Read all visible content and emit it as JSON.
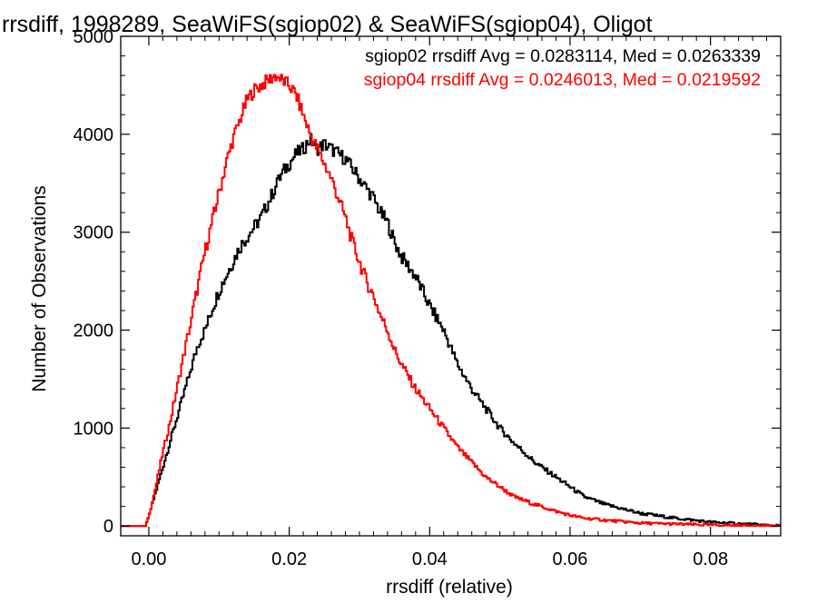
{
  "chart_data": {
    "type": "histogram",
    "title": "rrsdiff, 1998289, SeaWiFS(sgiop02) & SeaWiFS(sgiop04), Oligot",
    "xlabel": "rrsdiff (relative)",
    "ylabel": "Number of Observations",
    "xlim": [
      -0.004,
      0.09
    ],
    "ylim": [
      -100,
      5000
    ],
    "x_ticks": [
      0.0,
      0.02,
      0.04,
      0.06,
      0.08
    ],
    "x_tick_labels": [
      "0.00",
      "0.02",
      "0.04",
      "0.06",
      "0.08"
    ],
    "y_ticks": [
      0,
      1000,
      2000,
      3000,
      4000,
      5000
    ],
    "y_tick_labels": [
      "0",
      "1000",
      "2000",
      "3000",
      "4000",
      "5000"
    ],
    "bin_width": 0.0002,
    "legend": [
      {
        "text": "sgiop02 rrsdiff Avg = 0.0283114, Med = 0.0263339",
        "color": "#000000"
      },
      {
        "text": "sgiop04 rrsdiff Avg = 0.0246013, Med = 0.0219592",
        "color": "#ff0000"
      }
    ],
    "series": [
      {
        "color": "#000000",
        "x": [
          -0.004,
          -0.0005,
          0.0,
          0.001,
          0.002,
          0.003,
          0.004,
          0.005,
          0.006,
          0.007,
          0.008,
          0.009,
          0.01,
          0.011,
          0.012,
          0.013,
          0.014,
          0.015,
          0.016,
          0.017,
          0.018,
          0.019,
          0.02,
          0.021,
          0.022,
          0.023,
          0.024,
          0.025,
          0.026,
          0.027,
          0.028,
          0.029,
          0.03,
          0.031,
          0.032,
          0.033,
          0.034,
          0.035,
          0.036,
          0.037,
          0.038,
          0.039,
          0.04,
          0.042,
          0.044,
          0.046,
          0.048,
          0.05,
          0.052,
          0.055,
          0.058,
          0.06,
          0.062,
          0.065,
          0.07,
          0.075,
          0.08,
          0.085,
          0.09
        ],
        "values": [
          0,
          0,
          100,
          350,
          600,
          850,
          1100,
          1350,
          1600,
          1850,
          2000,
          2200,
          2400,
          2550,
          2700,
          2850,
          2950,
          3050,
          3150,
          3300,
          3450,
          3600,
          3700,
          3800,
          3850,
          3950,
          3850,
          3900,
          3850,
          3800,
          3750,
          3650,
          3550,
          3450,
          3350,
          3200,
          3100,
          2900,
          2750,
          2650,
          2550,
          2400,
          2250,
          2000,
          1650,
          1400,
          1200,
          1000,
          850,
          650,
          500,
          400,
          300,
          220,
          130,
          80,
          40,
          20,
          0
        ]
      },
      {
        "color": "#ff0000",
        "x": [
          -0.004,
          -0.0005,
          0.0,
          0.001,
          0.002,
          0.003,
          0.004,
          0.005,
          0.006,
          0.007,
          0.008,
          0.009,
          0.01,
          0.011,
          0.012,
          0.013,
          0.014,
          0.015,
          0.016,
          0.017,
          0.018,
          0.019,
          0.02,
          0.021,
          0.022,
          0.023,
          0.024,
          0.025,
          0.026,
          0.027,
          0.028,
          0.029,
          0.03,
          0.031,
          0.032,
          0.033,
          0.034,
          0.035,
          0.036,
          0.038,
          0.04,
          0.042,
          0.044,
          0.046,
          0.048,
          0.05,
          0.052,
          0.055,
          0.058,
          0.06,
          0.062,
          0.065,
          0.07,
          0.075,
          0.08,
          0.085,
          0.09
        ],
        "values": [
          0,
          0,
          100,
          400,
          750,
          1050,
          1400,
          1750,
          2100,
          2450,
          2800,
          3100,
          3400,
          3700,
          3950,
          4150,
          4350,
          4450,
          4500,
          4550,
          4600,
          4550,
          4500,
          4400,
          4200,
          4000,
          3850,
          3700,
          3550,
          3350,
          3150,
          2900,
          2700,
          2500,
          2350,
          2150,
          2000,
          1800,
          1650,
          1400,
          1200,
          1000,
          800,
          650,
          500,
          400,
          300,
          220,
          150,
          110,
          80,
          60,
          30,
          20,
          10,
          5,
          0
        ]
      }
    ]
  }
}
